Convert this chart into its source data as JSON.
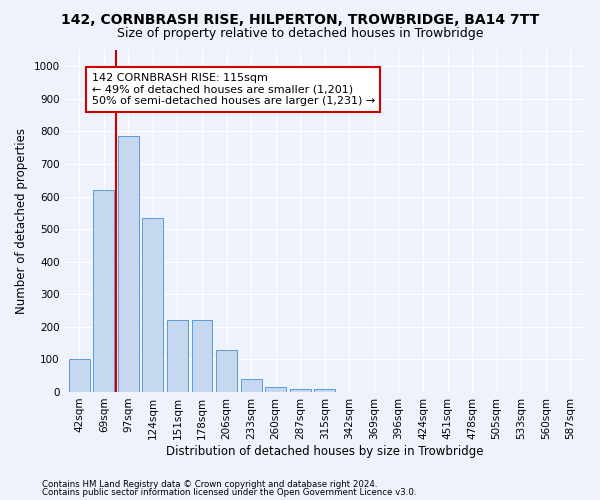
{
  "title": "142, CORNBRASH RISE, HILPERTON, TROWBRIDGE, BA14 7TT",
  "subtitle": "Size of property relative to detached houses in Trowbridge",
  "xlabel": "Distribution of detached houses by size in Trowbridge",
  "ylabel": "Number of detached properties",
  "categories": [
    "42sqm",
    "69sqm",
    "97sqm",
    "124sqm",
    "151sqm",
    "178sqm",
    "206sqm",
    "233sqm",
    "260sqm",
    "287sqm",
    "315sqm",
    "342sqm",
    "369sqm",
    "396sqm",
    "424sqm",
    "451sqm",
    "478sqm",
    "505sqm",
    "533sqm",
    "560sqm",
    "587sqm"
  ],
  "bar_values": [
    100,
    620,
    785,
    535,
    220,
    220,
    130,
    40,
    15,
    10,
    10,
    0,
    0,
    0,
    0,
    0,
    0,
    0,
    0,
    0,
    0
  ],
  "bar_color": "#c5d8f0",
  "bar_edge_color": "#5b9bd5",
  "vline_x": 1.5,
  "vline_color": "#cc0000",
  "annotation_text": "142 CORNBRASH RISE: 115sqm\n← 49% of detached houses are smaller (1,201)\n50% of semi-detached houses are larger (1,231) →",
  "annotation_box_color": "#cc0000",
  "ylim": [
    0,
    1050
  ],
  "yticks": [
    0,
    100,
    200,
    300,
    400,
    500,
    600,
    700,
    800,
    900,
    1000
  ],
  "footer_line1": "Contains HM Land Registry data © Crown copyright and database right 2024.",
  "footer_line2": "Contains public sector information licensed under the Open Government Licence v3.0.",
  "bg_color": "#eef2fb",
  "plot_bg_color": "#eef2fb",
  "title_fontsize": 10,
  "subtitle_fontsize": 9,
  "axis_label_fontsize": 8.5,
  "tick_fontsize": 7.5
}
